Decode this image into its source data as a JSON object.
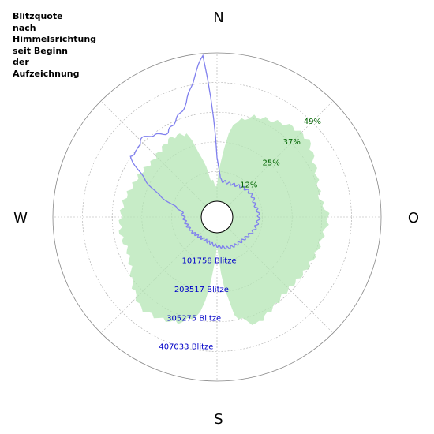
{
  "chart_data": {
    "type": "polar",
    "title_lines": [
      "Blitzquote",
      "nach",
      "Himmelsrichtung",
      "seit Beginn",
      "der",
      "Aufzeichnung"
    ],
    "directions": {
      "north": "N",
      "east": "O",
      "south": "S",
      "west": "W"
    },
    "percent_axis": {
      "max": 61,
      "ticks": [
        12,
        25,
        37,
        49
      ],
      "tick_labels": [
        "12%",
        "25%",
        "37%",
        "49%"
      ]
    },
    "count_axis": {
      "max": 508792,
      "ticks": [
        101758,
        203517,
        305275,
        407033
      ],
      "tick_labels": [
        "101758 Blitze",
        "203517 Blitze",
        "305275 Blitze",
        "407033 Blitze"
      ]
    },
    "series": [
      {
        "kind": "percent",
        "color": "#b4e6b4",
        "angles_deg": [
          0,
          10,
          20,
          30,
          40,
          50,
          60,
          70,
          80,
          90,
          100,
          110,
          120,
          130,
          140,
          150,
          160,
          170,
          180,
          190,
          200,
          210,
          220,
          230,
          240,
          250,
          260,
          270,
          280,
          290,
          300,
          310,
          320,
          330,
          340,
          350
        ],
        "values": [
          6,
          32,
          37,
          39,
          42,
          43,
          40,
          38,
          37,
          40,
          38,
          37,
          36,
          35,
          35,
          37,
          40,
          34,
          4,
          34,
          40,
          42,
          43,
          39,
          35,
          33,
          34,
          33,
          32,
          30,
          29,
          28,
          29,
          31,
          30,
          10
        ]
      },
      {
        "kind": "count",
        "color": "#8080ee",
        "angles_deg": [
          0,
          5,
          10,
          20,
          30,
          40,
          50,
          60,
          70,
          80,
          90,
          100,
          110,
          120,
          130,
          140,
          150,
          160,
          170,
          180,
          190,
          200,
          210,
          220,
          230,
          240,
          250,
          260,
          270,
          280,
          285,
          290,
          300,
          305,
          310,
          315,
          320,
          325,
          330,
          335,
          340,
          345,
          350,
          355
        ],
        "values": [
          150000,
          75000,
          70000,
          68000,
          72000,
          80000,
          85000,
          86000,
          82000,
          85000,
          90000,
          85000,
          80000,
          70000,
          65000,
          62000,
          60000,
          58000,
          50000,
          45000,
          40000,
          36000,
          34000,
          36000,
          40000,
          45000,
          50000,
          55000,
          60000,
          70000,
          100000,
          150000,
          250000,
          310000,
          300000,
          320000,
          310000,
          290000,
          280000,
          300000,
          320000,
          350000,
          420000,
          500000
        ]
      }
    ],
    "grid": true,
    "legend": "none"
  }
}
